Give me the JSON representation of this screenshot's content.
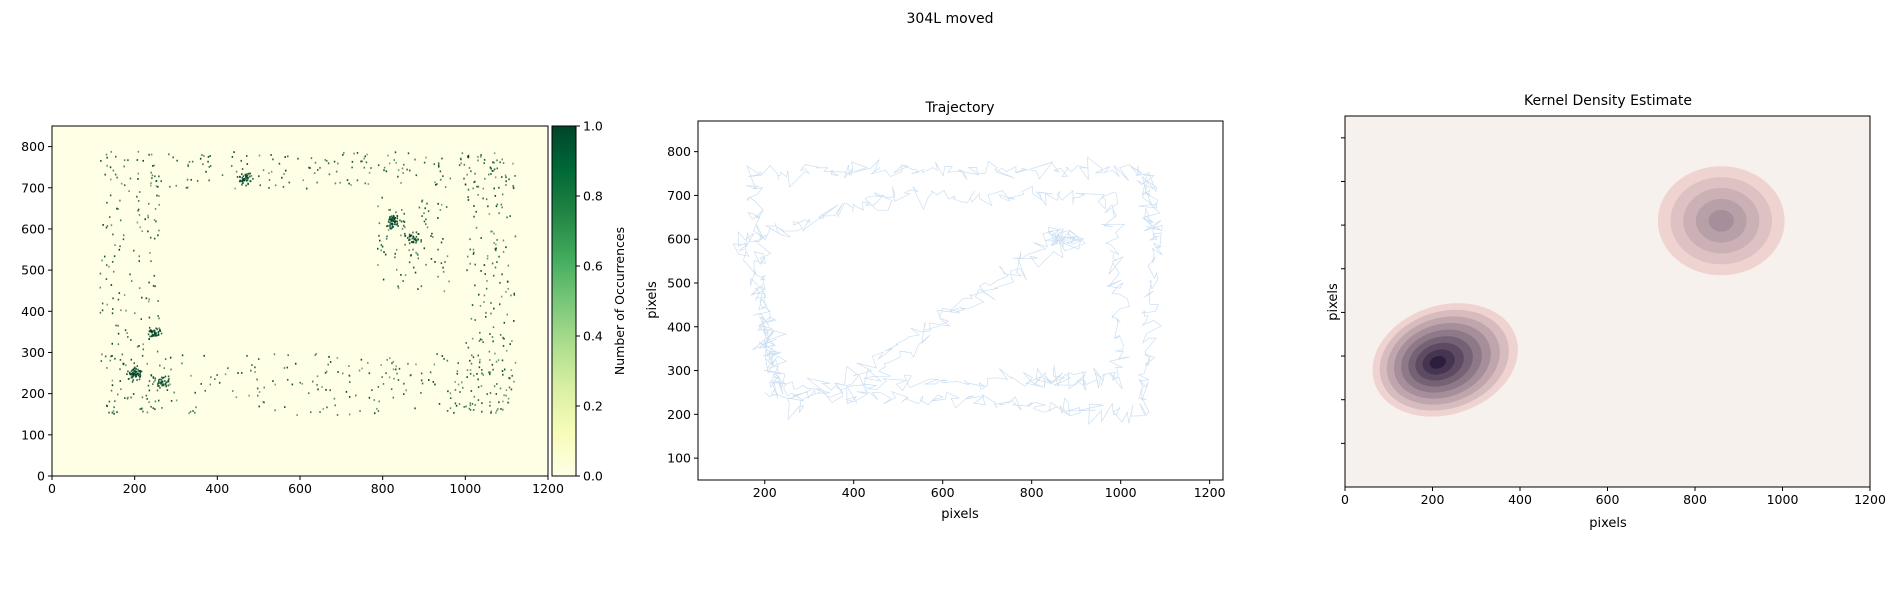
{
  "figure": {
    "title": "304L moved"
  },
  "colors": {
    "heatmap_low": "#ffffe5",
    "heatmap_high": "#004529",
    "trajectory_line": "#c6dbef",
    "kde_background": "#f6f1ec",
    "kde_light": "#efd3d1",
    "kde_dark": "#2d1e3e"
  },
  "chart_data": [
    {
      "type": "heatmap",
      "title": "",
      "xlabel": "",
      "ylabel": "",
      "xlim": [
        0,
        1200
      ],
      "ylim": [
        0,
        850
      ],
      "xticks": [
        "0",
        "200",
        "400",
        "600",
        "800",
        "1000",
        "1200"
      ],
      "yticks": [
        "0",
        "100",
        "200",
        "300",
        "400",
        "500",
        "600",
        "700",
        "800"
      ],
      "colorbar": {
        "label": "Number of Occurrences",
        "range": [
          0.0,
          1.0
        ],
        "ticks": [
          "0.0",
          "0.2",
          "0.4",
          "0.6",
          "0.8",
          "1.0"
        ],
        "colormap": "YlGn"
      },
      "dense_clusters": [
        {
          "x": 200,
          "y": 250,
          "intensity": 1.0
        },
        {
          "x": 825,
          "y": 620,
          "intensity": 1.0
        },
        {
          "x": 245,
          "y": 350,
          "intensity": 0.7
        },
        {
          "x": 465,
          "y": 725,
          "intensity": 0.7
        },
        {
          "x": 265,
          "y": 230,
          "intensity": 0.6
        },
        {
          "x": 870,
          "y": 580,
          "intensity": 0.6
        }
      ]
    },
    {
      "type": "line",
      "title": "Trajectory",
      "xlabel": "pixels",
      "ylabel": "pixels",
      "xlim": [
        50,
        1230
      ],
      "ylim": [
        50,
        870
      ],
      "xticks": [
        "200",
        "400",
        "600",
        "800",
        "1000",
        "1200"
      ],
      "yticks": [
        "100",
        "200",
        "300",
        "400",
        "500",
        "600",
        "700",
        "800"
      ],
      "occupied_extent": {
        "x": [
          115,
          1180
        ],
        "y": [
          90,
          830
        ]
      }
    },
    {
      "type": "heatmap",
      "title": "Kernel Density Estimate",
      "xlabel": "pixels",
      "ylabel": "pixels",
      "xlim": [
        0,
        1200
      ],
      "ylim": [
        0,
        850
      ],
      "xticks": [
        "0",
        "200",
        "400",
        "600",
        "800",
        "1000",
        "1200"
      ],
      "yticks": [],
      "kde_modes": [
        {
          "x": 210,
          "y": 285,
          "peak": 1.0
        },
        {
          "x": 860,
          "y": 610,
          "peak": 0.55
        }
      ],
      "contour_levels": 9
    }
  ]
}
